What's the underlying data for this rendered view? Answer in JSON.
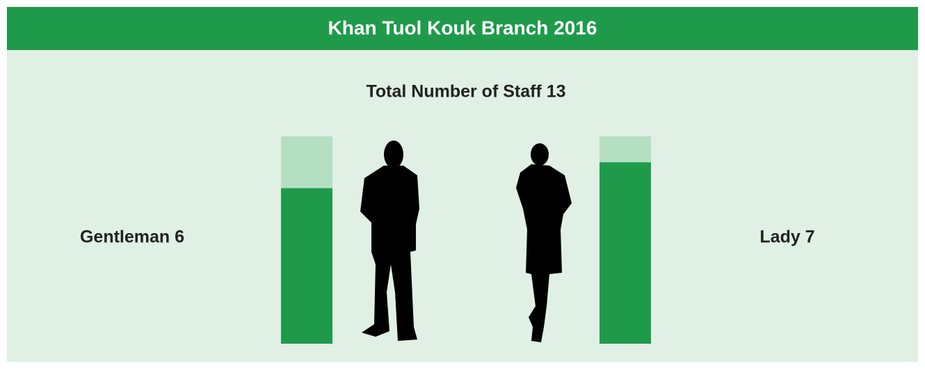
{
  "chart_data": {
    "type": "bar",
    "title": "Khan Tuol Kouk Branch 2016",
    "subtitle": "Total Number of Staff 13",
    "values": [
      6,
      7
    ],
    "value_labels": [
      "Gentleman 6",
      "Lady 7"
    ],
    "color": "#1f9a4b",
    "track_color": "#b5dfc2",
    "ylim": [
      0,
      8
    ]
  }
}
